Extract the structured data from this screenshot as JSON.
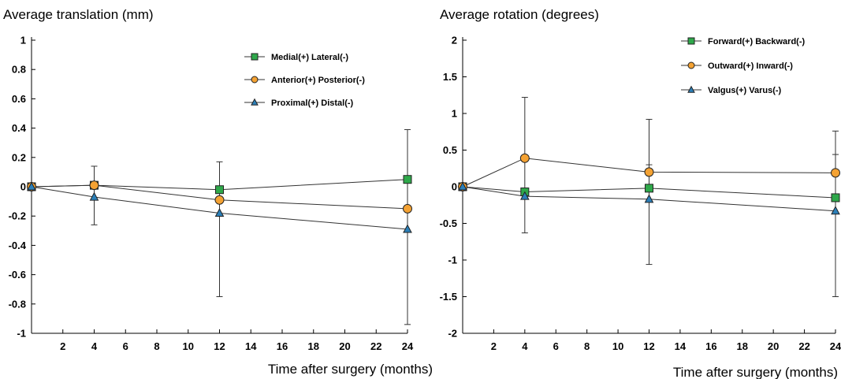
{
  "chart_data": [
    {
      "type": "line",
      "title": "Average translation (mm)",
      "xlabel": "Time after surgery (months)",
      "ylabel": "",
      "xlim": [
        0,
        24
      ],
      "ylim": [
        -1,
        1
      ],
      "xticks": [
        2,
        4,
        6,
        8,
        10,
        12,
        14,
        16,
        18,
        20,
        22,
        24
      ],
      "yticks": [
        1,
        0.8,
        0.6,
        0.4,
        0.2,
        0,
        -0.2,
        -0.4,
        -0.6,
        -0.8,
        -1
      ],
      "ytick_labels": [
        "1",
        "0.8",
        "0.6",
        "0.4",
        "0.2",
        "0",
        "-0.2",
        "-0.4",
        "-0.6",
        "-0.8",
        "-1"
      ],
      "grid": false,
      "legend_position": "top-right",
      "series": [
        {
          "name": "Medial(+) Lateral(-)",
          "marker": "square",
          "color": "#2ea84a",
          "x": [
            0,
            4,
            12,
            24
          ],
          "y": [
            0,
            0.01,
            -0.02,
            0.05
          ],
          "error": [
            null,
            null,
            null,
            null
          ]
        },
        {
          "name": "Anterior(+) Posterior(-)",
          "marker": "circle",
          "color": "#f4a233",
          "x": [
            0,
            4,
            12,
            24
          ],
          "y": [
            0,
            0.01,
            -0.09,
            -0.15
          ],
          "error": [
            null,
            null,
            null,
            null
          ]
        },
        {
          "name": "Proximal(+) Distal(-)",
          "marker": "triangle",
          "color": "#2b7fb8",
          "x": [
            0,
            4,
            12,
            24
          ],
          "y": [
            0,
            -0.07,
            -0.18,
            -0.29
          ],
          "error": [
            null,
            [
              -0.26,
              0.14
            ],
            [
              -0.75,
              0.17
            ],
            [
              -0.94,
              0.39
            ]
          ]
        }
      ]
    },
    {
      "type": "line",
      "title": "Average rotation (degrees)",
      "xlabel": "Time after surgery (months)",
      "ylabel": "",
      "xlim": [
        0,
        24
      ],
      "ylim": [
        -2,
        2
      ],
      "xticks": [
        2,
        4,
        6,
        8,
        10,
        12,
        14,
        16,
        18,
        20,
        22,
        24
      ],
      "yticks": [
        2,
        1.5,
        1,
        0.5,
        0,
        -0.5,
        -1,
        -1.5,
        -2
      ],
      "ytick_labels": [
        "2",
        "1.5",
        "1",
        "0.5",
        "0",
        "-0.5",
        "-1",
        "-1.5",
        "-2"
      ],
      "grid": false,
      "legend_position": "top-right",
      "series": [
        {
          "name": "Forward(+) Backward(-)",
          "marker": "square",
          "color": "#2ea84a",
          "x": [
            0,
            4,
            12,
            24
          ],
          "y": [
            0,
            -0.07,
            -0.02,
            -0.15
          ],
          "error": [
            null,
            null,
            null,
            null
          ]
        },
        {
          "name": "Outward(+) Inward(-)",
          "marker": "circle",
          "color": "#f4a233",
          "x": [
            0,
            4,
            12,
            24
          ],
          "y": [
            0,
            0.39,
            0.2,
            0.19
          ],
          "error": [
            null,
            [
              -0.63,
              1.22
            ],
            [
              -1.06,
              0.92
            ],
            [
              -1.5,
              0.76
            ]
          ]
        },
        {
          "name": "Valgus(+) Varus(-)",
          "marker": "triangle",
          "color": "#2b7fb8",
          "x": [
            0,
            4,
            12,
            24
          ],
          "y": [
            0,
            -0.13,
            -0.17,
            -0.33
          ],
          "error": [
            null,
            null,
            [
              -0.2,
              0.3
            ],
            [
              -0.2,
              0.44
            ]
          ]
        }
      ]
    }
  ]
}
